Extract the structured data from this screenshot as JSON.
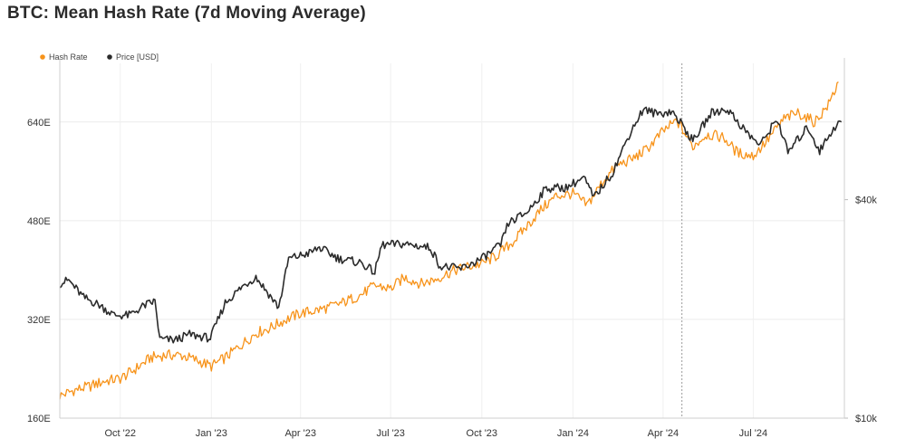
{
  "chart_data": {
    "type": "line",
    "title": "BTC: Mean Hash Rate (7d Moving Average)",
    "legend": {
      "placement": "top-left"
    },
    "y_left": {
      "ticks": [
        "160E",
        "320E",
        "480E",
        "640E"
      ],
      "tick_values": [
        160,
        320,
        480,
        640
      ],
      "range": [
        160,
        735
      ]
    },
    "y_right": {
      "scale": "log",
      "ticks": [
        "$10k",
        "$40k"
      ],
      "tick_values": [
        10000,
        40000
      ],
      "range": [
        10000,
        95000
      ]
    },
    "x_ticks": [
      {
        "label": "Oct '22",
        "date": "2022-10-01"
      },
      {
        "label": "Jan '23",
        "date": "2023-01-01"
      },
      {
        "label": "Apr '23",
        "date": "2023-04-01"
      },
      {
        "label": "Jul '23",
        "date": "2023-07-01"
      },
      {
        "label": "Oct '23",
        "date": "2023-10-01"
      },
      {
        "label": "Jan '24",
        "date": "2024-01-01"
      },
      {
        "label": "Apr '24",
        "date": "2024-04-01"
      },
      {
        "label": "Jul '24",
        "date": "2024-07-01"
      }
    ],
    "x_range": [
      "2022-08-01",
      "2024-10-01"
    ],
    "marker_date": "2024-04-20",
    "grid": true,
    "series": [
      {
        "name": "Hash Rate",
        "axis": "left",
        "color": "#f7931a",
        "points": [
          [
            "2022-08-01",
            196
          ],
          [
            "2022-08-15",
            205
          ],
          [
            "2022-09-01",
            212
          ],
          [
            "2022-09-15",
            220
          ],
          [
            "2022-10-01",
            224
          ],
          [
            "2022-10-15",
            238
          ],
          [
            "2022-11-01",
            258
          ],
          [
            "2022-11-15",
            262
          ],
          [
            "2022-12-01",
            262
          ],
          [
            "2022-12-15",
            255
          ],
          [
            "2023-01-01",
            244
          ],
          [
            "2023-01-15",
            258
          ],
          [
            "2023-02-01",
            280
          ],
          [
            "2023-02-15",
            298
          ],
          [
            "2023-03-01",
            306
          ],
          [
            "2023-03-15",
            318
          ],
          [
            "2023-04-01",
            330
          ],
          [
            "2023-04-15",
            334
          ],
          [
            "2023-05-01",
            340
          ],
          [
            "2023-05-15",
            348
          ],
          [
            "2023-06-01",
            360
          ],
          [
            "2023-06-15",
            375
          ],
          [
            "2023-07-01",
            370
          ],
          [
            "2023-07-15",
            388
          ],
          [
            "2023-08-01",
            378
          ],
          [
            "2023-08-15",
            385
          ],
          [
            "2023-09-01",
            398
          ],
          [
            "2023-09-15",
            405
          ],
          [
            "2023-10-01",
            410
          ],
          [
            "2023-10-15",
            422
          ],
          [
            "2023-11-01",
            445
          ],
          [
            "2023-11-15",
            470
          ],
          [
            "2023-12-01",
            500
          ],
          [
            "2023-12-15",
            520
          ],
          [
            "2024-01-01",
            524
          ],
          [
            "2024-01-15",
            505
          ],
          [
            "2024-02-01",
            545
          ],
          [
            "2024-02-15",
            570
          ],
          [
            "2024-03-01",
            580
          ],
          [
            "2024-03-15",
            595
          ],
          [
            "2024-04-01",
            625
          ],
          [
            "2024-04-15",
            642
          ],
          [
            "2024-05-01",
            600
          ],
          [
            "2024-05-15",
            620
          ],
          [
            "2024-06-01",
            615
          ],
          [
            "2024-06-15",
            590
          ],
          [
            "2024-07-01",
            585
          ],
          [
            "2024-07-15",
            610
          ],
          [
            "2024-08-01",
            645
          ],
          [
            "2024-08-15",
            655
          ],
          [
            "2024-09-01",
            640
          ],
          [
            "2024-09-15",
            668
          ],
          [
            "2024-09-25",
            705
          ]
        ]
      },
      {
        "name": "Price [USD]",
        "axis": "right",
        "color": "#2b2b2b",
        "points": [
          [
            "2022-08-01",
            23500
          ],
          [
            "2022-08-10",
            24000
          ],
          [
            "2022-08-25",
            21500
          ],
          [
            "2022-09-10",
            20500
          ],
          [
            "2022-09-25",
            19200
          ],
          [
            "2022-10-10",
            19200
          ],
          [
            "2022-10-25",
            20400
          ],
          [
            "2022-11-05",
            21000
          ],
          [
            "2022-11-10",
            16500
          ],
          [
            "2022-11-25",
            16400
          ],
          [
            "2022-12-10",
            17000
          ],
          [
            "2022-12-31",
            16600
          ],
          [
            "2023-01-15",
            20800
          ],
          [
            "2023-02-01",
            23000
          ],
          [
            "2023-02-15",
            24500
          ],
          [
            "2023-03-10",
            20200
          ],
          [
            "2023-03-20",
            27500
          ],
          [
            "2023-04-10",
            28500
          ],
          [
            "2023-04-20",
            29500
          ],
          [
            "2023-05-10",
            27500
          ],
          [
            "2023-06-01",
            26800
          ],
          [
            "2023-06-15",
            25200
          ],
          [
            "2023-06-22",
            30000
          ],
          [
            "2023-07-15",
            30200
          ],
          [
            "2023-08-10",
            29500
          ],
          [
            "2023-08-20",
            26200
          ],
          [
            "2023-09-10",
            25800
          ],
          [
            "2023-10-01",
            27500
          ],
          [
            "2023-10-20",
            30000
          ],
          [
            "2023-10-28",
            34500
          ],
          [
            "2023-11-15",
            36800
          ],
          [
            "2023-12-05",
            43000
          ],
          [
            "2023-12-25",
            43200
          ],
          [
            "2024-01-12",
            46000
          ],
          [
            "2024-01-22",
            40500
          ],
          [
            "2024-02-10",
            47500
          ],
          [
            "2024-02-28",
            61500
          ],
          [
            "2024-03-12",
            71000
          ],
          [
            "2024-03-25",
            69000
          ],
          [
            "2024-04-10",
            70000
          ],
          [
            "2024-04-20",
            64500
          ],
          [
            "2024-05-01",
            58000
          ],
          [
            "2024-05-20",
            69500
          ],
          [
            "2024-06-05",
            71000
          ],
          [
            "2024-06-25",
            61000
          ],
          [
            "2024-07-08",
            56500
          ],
          [
            "2024-07-25",
            67000
          ],
          [
            "2024-08-05",
            54000
          ],
          [
            "2024-08-25",
            63500
          ],
          [
            "2024-09-06",
            54500
          ],
          [
            "2024-09-20",
            63000
          ],
          [
            "2024-09-28",
            65500
          ]
        ]
      }
    ]
  }
}
